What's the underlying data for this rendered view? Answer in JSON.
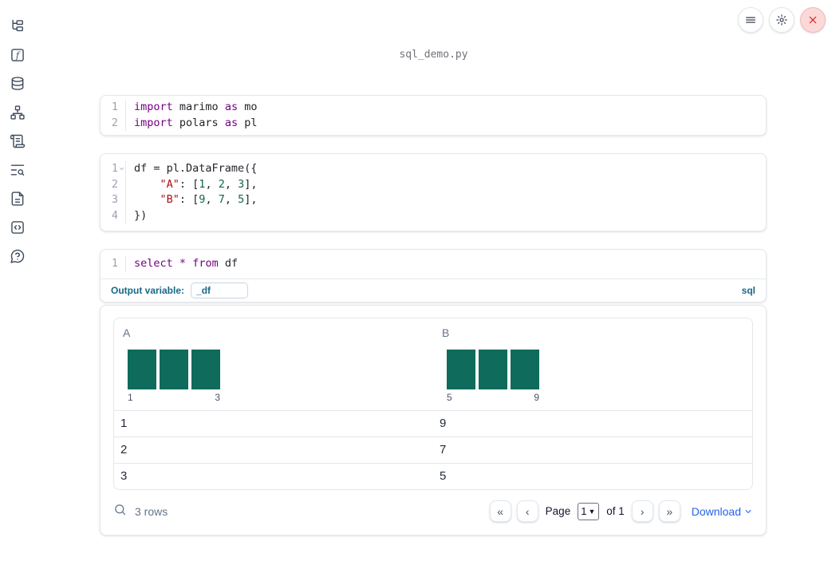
{
  "window": {
    "title": "sql_demo.py"
  },
  "sidebar": {
    "icons": [
      "file-tree",
      "function-variables",
      "datasources",
      "dependency-graph",
      "scroll-log",
      "text-search",
      "documentation",
      "snippets",
      "help-chat"
    ]
  },
  "topbar": {
    "icons": [
      "hamburger-menu",
      "settings-gear",
      "shutdown-close"
    ]
  },
  "cells": [
    {
      "type": "python",
      "lines": [
        {
          "n": "1",
          "t": [
            [
              "k",
              "import"
            ],
            [
              "p",
              " marimo "
            ],
            [
              "k",
              "as"
            ],
            [
              "p",
              " mo"
            ]
          ]
        },
        {
          "n": "2",
          "t": [
            [
              "k",
              "import"
            ],
            [
              "p",
              " polars "
            ],
            [
              "k",
              "as"
            ],
            [
              "p",
              " pl"
            ]
          ]
        }
      ]
    },
    {
      "type": "python",
      "lines": [
        {
          "n": "1",
          "fold": true,
          "t": [
            [
              "p",
              "df = pl.DataFrame({"
            ]
          ]
        },
        {
          "n": "2",
          "t": [
            [
              "p",
              "    "
            ],
            [
              "s",
              "\"A\""
            ],
            [
              "p",
              ": ["
            ],
            [
              "n",
              "1"
            ],
            [
              "p",
              ", "
            ],
            [
              "n",
              "2"
            ],
            [
              "p",
              ", "
            ],
            [
              "n",
              "3"
            ],
            [
              "p",
              "],"
            ]
          ]
        },
        {
          "n": "3",
          "t": [
            [
              "p",
              "    "
            ],
            [
              "s",
              "\"B\""
            ],
            [
              "p",
              ": ["
            ],
            [
              "n",
              "9"
            ],
            [
              "p",
              ", "
            ],
            [
              "n",
              "7"
            ],
            [
              "p",
              ", "
            ],
            [
              "n",
              "5"
            ],
            [
              "p",
              "],"
            ]
          ]
        },
        {
          "n": "4",
          "t": [
            [
              "p",
              "})"
            ]
          ]
        }
      ]
    },
    {
      "type": "sql",
      "lines": [
        {
          "n": "1",
          "t": [
            [
              "k",
              "select"
            ],
            [
              "p",
              " "
            ],
            [
              "k",
              "*"
            ],
            [
              "p",
              " "
            ],
            [
              "k",
              "from"
            ],
            [
              "p",
              " df"
            ]
          ]
        }
      ],
      "output_variable": {
        "label": "Output variable:",
        "value": "_df"
      },
      "language_badge": "sql"
    }
  ],
  "table": {
    "columns": [
      {
        "name": "A",
        "histogram": {
          "values": [
            1,
            1,
            1
          ],
          "min_label": "1",
          "max_label": "3",
          "bar_color": "#0f6b5b"
        }
      },
      {
        "name": "B",
        "histogram": {
          "values": [
            1,
            1,
            1
          ],
          "min_label": "5",
          "max_label": "9",
          "bar_color": "#0f6b5b"
        }
      }
    ],
    "rows": [
      [
        "1",
        "9"
      ],
      [
        "2",
        "7"
      ],
      [
        "3",
        "5"
      ]
    ],
    "footer": {
      "row_count": "3 rows",
      "pagination": {
        "first": "«",
        "prev": "‹",
        "next": "›",
        "last": "»",
        "page_label": "Page",
        "page_value": "1",
        "of_label": "of 1"
      },
      "download_label": "Download"
    }
  },
  "colors": {
    "keyword": "#770088",
    "string": "#aa1111",
    "number": "#116644",
    "accent_teal": "#176986",
    "bar_green": "#0f6b5b",
    "link_blue": "#2563eb",
    "danger_red": "#dc2626",
    "border": "#e5e7eb"
  }
}
